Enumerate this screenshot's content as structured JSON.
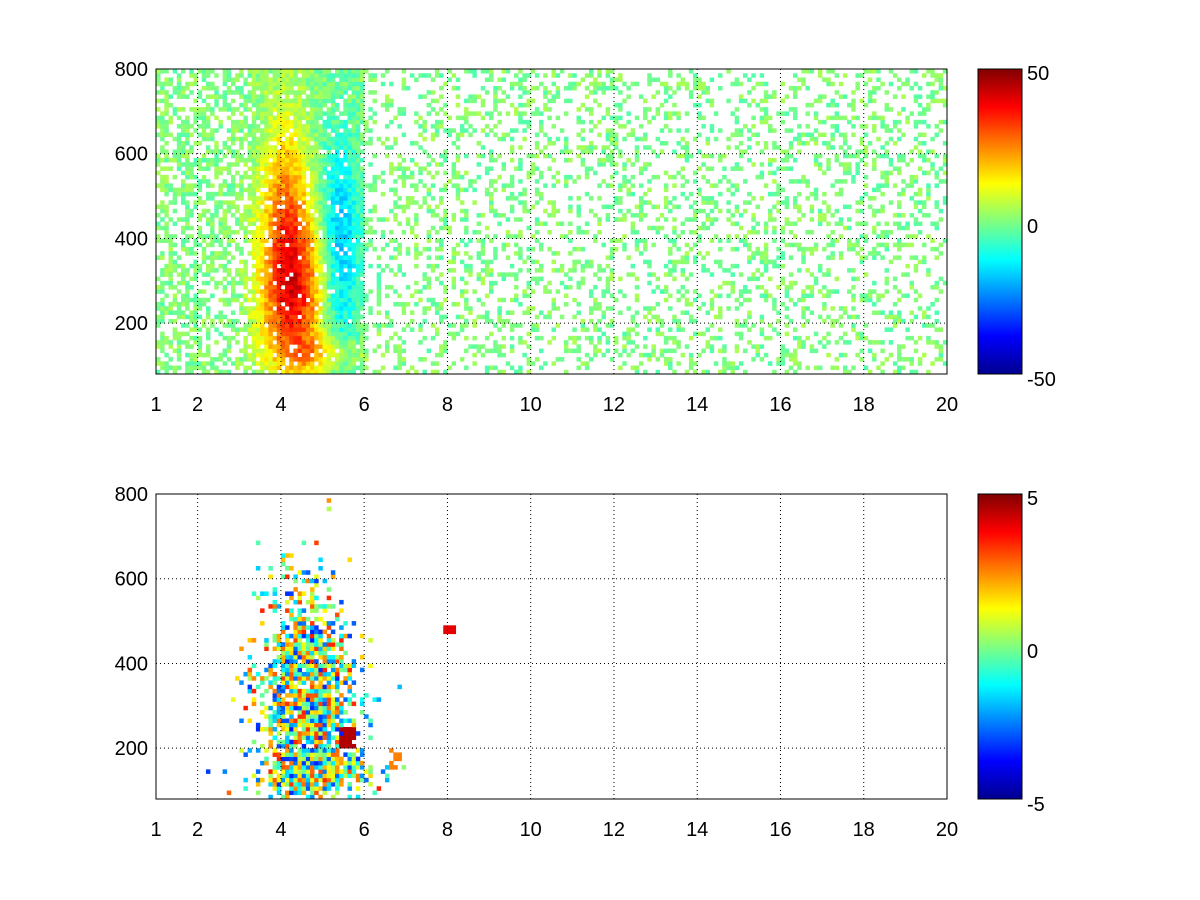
{
  "chart_data": [
    {
      "type": "heatmap",
      "title": "",
      "xlabel": "",
      "ylabel": "",
      "xlim": [
        1,
        20
      ],
      "ylim": [
        80,
        800
      ],
      "x_ticks": [
        1,
        2,
        4,
        6,
        8,
        10,
        12,
        14,
        16,
        18,
        20
      ],
      "x_tick_labels": [
        "1",
        "2",
        "4",
        "6",
        "8",
        "10",
        "12",
        "14",
        "16",
        "18",
        "20"
      ],
      "y_ticks": [
        200,
        400,
        600,
        800
      ],
      "y_tick_labels": [
        "200",
        "400",
        "600",
        "800"
      ],
      "grid": true,
      "colormap": "jet",
      "clim": [
        -50,
        50
      ],
      "colorbar_ticks": [
        50,
        0,
        -50
      ],
      "colorbar_tick_labels": [
        "50",
        "0",
        "-50"
      ],
      "features": [
        {
          "desc": "strong positive ridge",
          "x_range": [
            3.5,
            5.8
          ],
          "y_range": [
            120,
            700
          ],
          "peak_value": 35
        },
        {
          "desc": "negative region",
          "x_range": [
            4.8,
            5.9
          ],
          "y_range": [
            150,
            650
          ],
          "peak_value": -20
        },
        {
          "desc": "sparse near-zero speckle",
          "x_range": [
            6,
            20
          ],
          "y_range": [
            80,
            800
          ],
          "peak_value": 5
        }
      ]
    },
    {
      "type": "heatmap",
      "title": "",
      "xlabel": "",
      "ylabel": "",
      "xlim": [
        1,
        20
      ],
      "ylim": [
        80,
        800
      ],
      "x_ticks": [
        1,
        2,
        4,
        6,
        8,
        10,
        12,
        14,
        16,
        18,
        20
      ],
      "x_tick_labels": [
        "1",
        "2",
        "4",
        "6",
        "8",
        "10",
        "12",
        "14",
        "16",
        "18",
        "20"
      ],
      "y_ticks": [
        200,
        400,
        600,
        800
      ],
      "y_tick_labels": [
        "200",
        "400",
        "600",
        "800"
      ],
      "grid": true,
      "colormap": "jet",
      "clim": [
        -5,
        5
      ],
      "colorbar_ticks": [
        5,
        0,
        -5
      ],
      "colorbar_tick_labels": [
        "5",
        "0",
        "-5"
      ],
      "features": [
        {
          "desc": "mixed cluster",
          "x_range": [
            3.5,
            6.0
          ],
          "y_range": [
            110,
            700
          ],
          "peak_value": 4
        },
        {
          "desc": "red patch",
          "x_range": [
            5.4,
            5.8
          ],
          "y_range": [
            200,
            250
          ],
          "peak_value": 4.5
        },
        {
          "desc": "red spot",
          "x_range": [
            7.9,
            8.2
          ],
          "y_range": [
            470,
            490
          ],
          "peak_value": 4
        }
      ]
    }
  ]
}
